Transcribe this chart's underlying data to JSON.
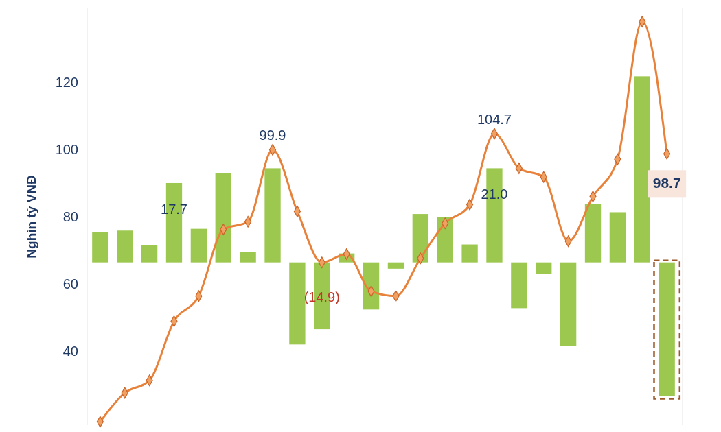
{
  "chart_data": {
    "type": "bar",
    "ylabel": "Nghìn tỷ VNĐ",
    "categories": [
      null,
      null,
      null,
      null,
      null,
      null,
      null,
      null,
      null,
      null,
      null,
      null,
      null,
      null,
      null,
      null,
      null,
      null,
      null,
      null,
      null,
      null,
      null,
      null
    ],
    "ylim": [
      18,
      142
    ],
    "yticks": [
      40,
      60,
      80,
      100,
      120
    ],
    "y2lim": [
      -36.3,
      56.7
    ],
    "tick_labels": "y",
    "grid": false,
    "series": [
      {
        "axis": "y2",
        "color": "#9dc84f",
        "values": [
          6.7,
          7.1,
          3.8,
          17.7,
          7.5,
          19.9,
          2.3,
          21.0,
          -18.3,
          -14.9,
          2.0,
          -10.5,
          -1.4,
          10.8,
          10.1,
          4.0,
          21.0,
          -10.2,
          -2.6,
          -18.7,
          13.0,
          11.2,
          41.5,
          -29.8
        ],
        "value_labels": [
          null,
          null,
          null,
          "17.7",
          null,
          null,
          null,
          null,
          null,
          "(14.9)",
          null,
          null,
          null,
          null,
          null,
          null,
          "21.0",
          null,
          null,
          null,
          null,
          null,
          null,
          null
        ]
      },
      {
        "type": "line",
        "color": "#e8823a",
        "marker": "diamond",
        "line_style": "solid",
        "values": [
          19,
          27.6,
          31.3,
          48.9,
          56.4,
          76.2,
          78.5,
          99.9,
          81.6,
          66.4,
          68.9,
          57.8,
          56.4,
          67.6,
          78.0,
          83.6,
          104.7,
          94.4,
          91.8,
          72.7,
          86.0,
          97.1,
          138,
          98.7
        ],
        "value_labels": [
          null,
          null,
          null,
          null,
          null,
          null,
          null,
          "99.9",
          null,
          null,
          null,
          null,
          null,
          null,
          null,
          null,
          "104.7",
          null,
          null,
          null,
          null,
          null,
          null,
          "98.7"
        ]
      }
    ]
  }
}
